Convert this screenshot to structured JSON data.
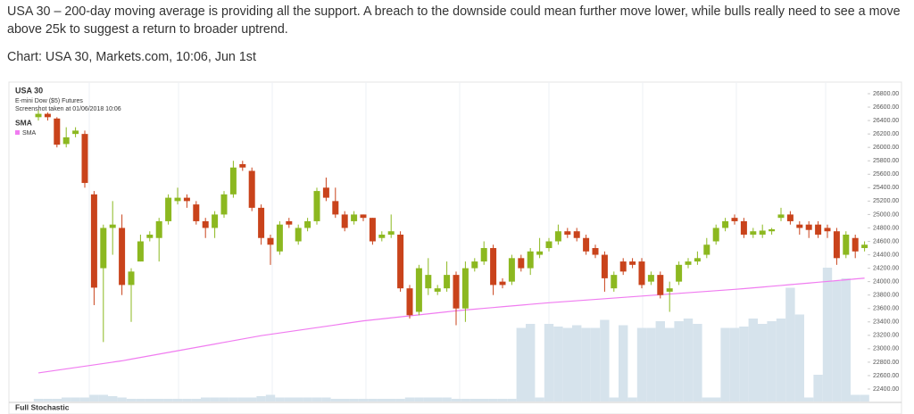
{
  "article": {
    "paragraph": "USA 30 – 200-day moving average is providing all the support. A breach to the downside could mean further move lower, while bulls really need to see a move above 25k to suggest a return to broader uptrend.",
    "source": "Chart: USA 30, Markets.com, 10:06, Jun 1st"
  },
  "chart_data": {
    "type": "candlestick",
    "title": "USA 30",
    "subtitle": "E-mini Dow ($5) Futures",
    "note": "Screenshot taken at 01/06/2018 10:06",
    "indicator_title": "SMA",
    "lower_panel_title": "Full Stochastic",
    "up_color": "#8cb820",
    "down_color": "#c9431b",
    "open": [
      26450,
      26500,
      26430,
      26050,
      26200,
      26200,
      25300,
      24200,
      24800,
      24800,
      23950,
      24300,
      24650,
      24650,
      24900,
      25200,
      25250,
      25150,
      24900,
      24800,
      25000,
      25300,
      25750,
      25650,
      25100,
      24650,
      24450,
      24900,
      24600,
      24800,
      24900,
      25400,
      25200,
      25000,
      24900,
      25000,
      24950,
      24650,
      24700,
      24700,
      23900,
      23550,
      23900,
      23850,
      23900,
      24100,
      23600,
      24200,
      24300,
      24500,
      24000,
      24000,
      24350,
      24200,
      24400,
      24500,
      24600,
      24750,
      24750,
      24650,
      24500,
      24400,
      23900,
      24300,
      24300,
      24300,
      24000,
      24100,
      23850,
      24000,
      24250,
      24300,
      24400,
      24600,
      24800,
      24950,
      24900,
      24700,
      24700,
      24750,
      24950,
      25000,
      24850,
      24850,
      24850,
      24800,
      24750,
      24400,
      24650,
      24500
    ],
    "high": [
      26550,
      26520,
      26450,
      26300,
      26300,
      26250,
      25350,
      24850,
      25200,
      25000,
      24200,
      24700,
      24750,
      24950,
      25300,
      25400,
      25300,
      25200,
      24950,
      25050,
      25350,
      25800,
      25800,
      25700,
      25150,
      24700,
      24900,
      24950,
      24850,
      24950,
      25400,
      25550,
      25400,
      25050,
      25050,
      25000,
      24950,
      24750,
      25000,
      24750,
      23950,
      24250,
      24350,
      23950,
      24300,
      24150,
      24300,
      24350,
      24600,
      24550,
      24050,
      24400,
      24400,
      24500,
      24650,
      24650,
      24850,
      24800,
      24800,
      24700,
      24550,
      24450,
      24150,
      24350,
      24350,
      24350,
      24150,
      24150,
      24000,
      24300,
      24350,
      24450,
      24650,
      24850,
      24950,
      25000,
      24950,
      24800,
      24850,
      24800,
      25100,
      25050,
      24900,
      24900,
      24900,
      24850,
      24800,
      24750,
      24700,
      24600
    ],
    "low": [
      26400,
      26400,
      26000,
      26000,
      26150,
      25400,
      23650,
      23100,
      24400,
      23800,
      23400,
      24300,
      24600,
      24300,
      24850,
      25150,
      25100,
      24850,
      24650,
      24650,
      24950,
      25250,
      25650,
      25050,
      24550,
      24250,
      24400,
      24800,
      24550,
      24750,
      24850,
      25200,
      24950,
      24750,
      24850,
      24900,
      24550,
      24600,
      24650,
      23850,
      23450,
      23500,
      23800,
      23800,
      23850,
      23350,
      23400,
      24150,
      24250,
      23800,
      23900,
      23950,
      24150,
      24100,
      24350,
      24450,
      24550,
      24650,
      24600,
      24400,
      24350,
      23850,
      23850,
      24100,
      24200,
      23900,
      23950,
      23750,
      23550,
      23950,
      24200,
      24250,
      24350,
      24550,
      24750,
      24850,
      24650,
      24650,
      24650,
      24700,
      24900,
      24850,
      24700,
      24650,
      24650,
      24650,
      24250,
      24350,
      24350,
      24450
    ],
    "close": [
      26500,
      26450,
      26040,
      26150,
      26250,
      25470,
      23910,
      24800,
      24850,
      23950,
      24150,
      24600,
      24700,
      24900,
      25250,
      25250,
      25200,
      24900,
      24800,
      25000,
      25300,
      25700,
      25700,
      25100,
      24650,
      24550,
      24850,
      24850,
      24800,
      24900,
      25350,
      25250,
      25000,
      24800,
      25000,
      24950,
      24600,
      24700,
      24750,
      23900,
      23500,
      24200,
      24100,
      23900,
      24100,
      23600,
      24200,
      24300,
      24500,
      23950,
      23950,
      24350,
      24200,
      24450,
      24450,
      24600,
      24750,
      24700,
      24650,
      24450,
      24400,
      24050,
      24100,
      24150,
      24250,
      23950,
      24100,
      23800,
      23900,
      24250,
      24300,
      24350,
      24550,
      24800,
      24900,
      24900,
      24700,
      24750,
      24760,
      24780,
      25000,
      24900,
      24800,
      24770,
      24700,
      24750,
      24350,
      24700,
      24450,
      24550
    ],
    "sma": {
      "name": "SMA",
      "color": "#f07cf0",
      "values": [
        22640,
        22660,
        22680,
        22700,
        22720,
        22740,
        22760,
        22780,
        22800,
        22820,
        22845,
        22870,
        22895,
        22920,
        22945,
        22970,
        22995,
        23020,
        23045,
        23070,
        23095,
        23120,
        23145,
        23170,
        23195,
        23215,
        23235,
        23255,
        23275,
        23295,
        23315,
        23335,
        23355,
        23375,
        23395,
        23415,
        23430,
        23445,
        23460,
        23475,
        23490,
        23505,
        23520,
        23535,
        23550,
        23565,
        23578,
        23590,
        23602,
        23614,
        23626,
        23638,
        23650,
        23662,
        23674,
        23685,
        23695,
        23705,
        23715,
        23725,
        23735,
        23745,
        23755,
        23765,
        23775,
        23785,
        23795,
        23805,
        23815,
        23825,
        23835,
        23845,
        23855,
        23865,
        23875,
        23885,
        23895,
        23907,
        23919,
        23931,
        23943,
        23955,
        23967,
        23979,
        23991,
        24003,
        24015,
        24027,
        24040,
        24052
      ]
    },
    "volume": {
      "color": "#d6e3ec",
      "ylim": [
        0,
        100
      ],
      "values": [
        2,
        2,
        2,
        3,
        3,
        3,
        5,
        5,
        4,
        3,
        2,
        2,
        2,
        2,
        2,
        2,
        2,
        2,
        3,
        3,
        3,
        3,
        3,
        3,
        4,
        5,
        3,
        3,
        3,
        3,
        3,
        3,
        2,
        2,
        2,
        2,
        2,
        2,
        2,
        2,
        3,
        3,
        3,
        3,
        3,
        2,
        2,
        2,
        2,
        2,
        2,
        2,
        55,
        58,
        3,
        58,
        56,
        55,
        57,
        55,
        55,
        61,
        3,
        57,
        3,
        55,
        55,
        60,
        55,
        60,
        62,
        58,
        3,
        3,
        55,
        55,
        56,
        62,
        58,
        60,
        62,
        85,
        65,
        3,
        20,
        100,
        90,
        92,
        5,
        5
      ]
    },
    "ylim": [
      22400,
      26800
    ],
    "yticks": [
      {
        "value": 22400,
        "label": "22400.00"
      },
      {
        "value": 22600,
        "label": "22600.00"
      },
      {
        "value": 22800,
        "label": "22800.00"
      },
      {
        "value": 23000,
        "label": "23000.00"
      },
      {
        "value": 23200,
        "label": "23200.00"
      },
      {
        "value": 23400,
        "label": "23400.00"
      },
      {
        "value": 23600,
        "label": "23600.00"
      },
      {
        "value": 23800,
        "label": "23800.00"
      },
      {
        "value": 24000,
        "label": "24000.00"
      },
      {
        "value": 24200,
        "label": "24200.00"
      },
      {
        "value": 24400,
        "label": "24400.00"
      },
      {
        "value": 24600,
        "label": "24600.00"
      },
      {
        "value": 24800,
        "label": "24800.00"
      },
      {
        "value": 25000,
        "label": "25000.00"
      },
      {
        "value": 25200,
        "label": "25200.00"
      },
      {
        "value": 25400,
        "label": "25400.00"
      },
      {
        "value": 25600,
        "label": "25600.00"
      },
      {
        "value": 25800,
        "label": "25800.00"
      },
      {
        "value": 26000,
        "label": "26000.00"
      },
      {
        "value": 26200,
        "label": "26200.00"
      },
      {
        "value": 26400,
        "label": "26400.00"
      },
      {
        "value": 26600,
        "label": "26600.00"
      },
      {
        "value": 26800,
        "label": "26800.00"
      }
    ]
  }
}
